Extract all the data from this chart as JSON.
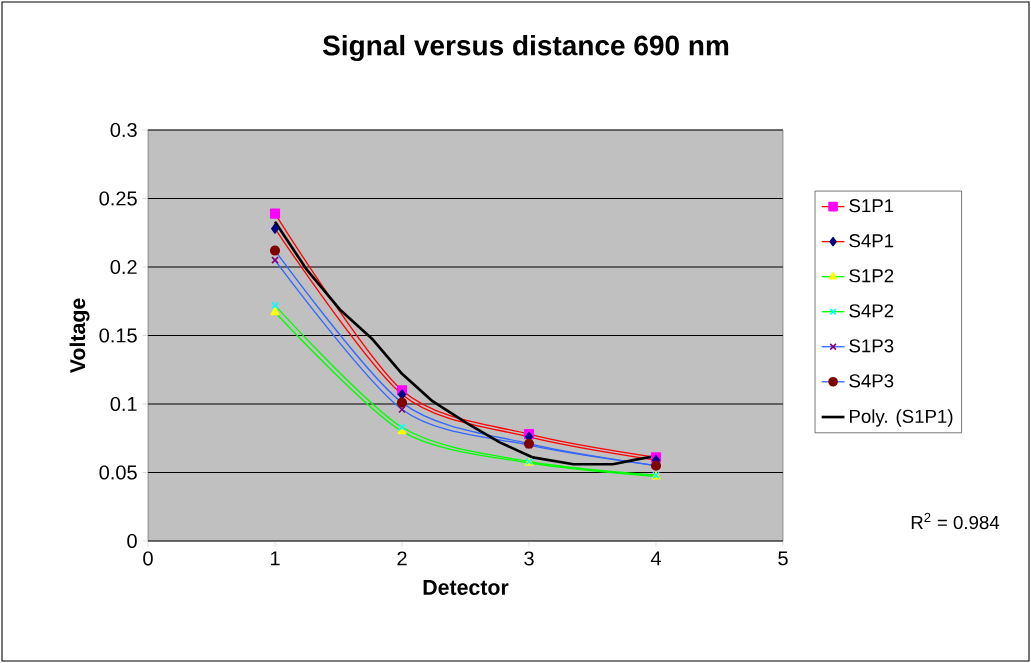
{
  "chart_data": {
    "type": "line",
    "title": "Signal versus distance 690 nm",
    "xlabel": "Detector",
    "ylabel": "Voltage",
    "x": [
      1,
      2,
      3,
      4
    ],
    "xlim": [
      0,
      5
    ],
    "xticks": [
      0,
      1,
      2,
      3,
      4,
      5
    ],
    "ylim": [
      0,
      0.3
    ],
    "yticks": [
      0,
      0.05,
      0.1,
      0.15,
      0.2,
      0.25,
      0.3
    ],
    "grid": "y",
    "legend": "right",
    "annotations": [
      "R$^{2}$ = 0.984"
    ],
    "series": [
      {
        "name": "S1P1",
        "color": "#ff0000",
        "colors": [
          "#ff00ff",
          "#ff00ff",
          "#ff00ff",
          "#ff00ff"
        ],
        "marker": "square",
        "values": [
          0.239,
          0.11,
          0.078,
          0.061
        ]
      },
      {
        "name": "S4P1",
        "color": "#ff0000",
        "colors": [
          "#000080",
          "#000080",
          "#000080",
          "#000080"
        ],
        "marker": "diamond",
        "values": [
          0.228,
          0.107,
          0.076,
          0.059
        ]
      },
      {
        "name": "S1P2",
        "color": "#00ff00",
        "colors": [
          "#ffff00",
          "#ffff00",
          "#ffff00",
          "#ffff00"
        ],
        "marker": "triangle",
        "values": [
          0.167,
          0.08,
          0.057,
          0.047
        ]
      },
      {
        "name": "S4P2",
        "color": "#00ff00",
        "colors": [
          "#00ffff",
          "#00ffff",
          "#00ffff",
          "#00ffff"
        ],
        "marker": "cross",
        "values": [
          0.172,
          0.083,
          0.058,
          0.048
        ]
      },
      {
        "name": "S1P3",
        "color": "#3366ff",
        "colors": [
          "#800080",
          "#800080",
          "#800080",
          "#800080"
        ],
        "marker": "cross",
        "values": [
          0.205,
          0.096,
          0.07,
          0.055
        ]
      },
      {
        "name": "S4P3",
        "color": "#3366ff",
        "colors": [
          "#800000",
          "#800000",
          "#800000",
          "#800000"
        ],
        "marker": "circle",
        "values": [
          0.212,
          0.101,
          0.071,
          0.055
        ]
      },
      {
        "name": "Poly. (S1P1)",
        "type": "line",
        "color": "#000000",
        "marker": "none",
        "x": [
          1.0,
          1.25,
          1.51,
          1.77,
          2.0,
          2.24,
          2.51,
          2.77,
          3.03,
          3.35,
          3.66,
          3.82,
          4.0
        ],
        "values": [
          0.233,
          0.198,
          0.169,
          0.147,
          0.122,
          0.102,
          0.086,
          0.072,
          0.061,
          0.056,
          0.056,
          0.059,
          0.062
        ]
      }
    ]
  }
}
